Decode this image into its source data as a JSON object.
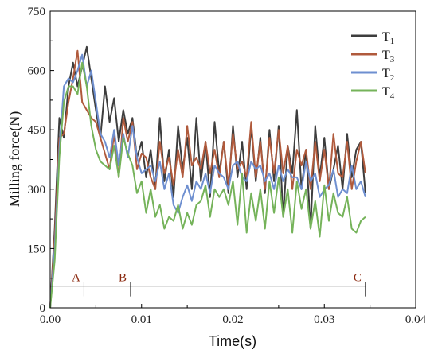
{
  "chart_data": {
    "type": "line",
    "xlabel": "Time(s)",
    "ylabel": "Milling force(N)",
    "xlim": [
      0.0,
      0.04
    ],
    "ylim": [
      0,
      750
    ],
    "x_ticks": [
      "0.00",
      "0.01",
      "0.02",
      "0.03",
      "0.04"
    ],
    "y_ticks": [
      "0",
      "150",
      "300",
      "450",
      "600",
      "750"
    ],
    "grid": false,
    "legend_position": "top-right",
    "legend": [
      {
        "base": "T",
        "sub": "1",
        "color": "#3d3d3d"
      },
      {
        "base": "T",
        "sub": "3",
        "color": "#b05a3c"
      },
      {
        "base": "T",
        "sub": "2",
        "color": "#6e8fd0"
      },
      {
        "base": "T",
        "sub": "4",
        "color": "#75b35a"
      }
    ],
    "phase_markers": {
      "level": 55,
      "labels": [
        "A",
        "B",
        "C"
      ],
      "x": [
        0.0037,
        0.0088,
        0.0345
      ],
      "start": 0.0
    },
    "x": [
      0.0,
      0.0005,
      0.001,
      0.0015,
      0.002,
      0.0025,
      0.003,
      0.0035,
      0.004,
      0.0045,
      0.005,
      0.0055,
      0.006,
      0.0065,
      0.007,
      0.0075,
      0.008,
      0.0085,
      0.009,
      0.0095,
      0.01,
      0.0105,
      0.011,
      0.0115,
      0.012,
      0.0125,
      0.013,
      0.0135,
      0.014,
      0.0145,
      0.015,
      0.0155,
      0.016,
      0.0165,
      0.017,
      0.0175,
      0.018,
      0.0185,
      0.019,
      0.0195,
      0.02,
      0.0205,
      0.021,
      0.0215,
      0.022,
      0.0225,
      0.023,
      0.0235,
      0.024,
      0.0245,
      0.025,
      0.0255,
      0.026,
      0.0265,
      0.027,
      0.0275,
      0.028,
      0.0285,
      0.029,
      0.0295,
      0.03,
      0.0305,
      0.031,
      0.0315,
      0.032,
      0.0325,
      0.033,
      0.0335,
      0.034,
      0.0345
    ],
    "series": [
      {
        "name": "T1",
        "color": "#3d3d3d",
        "values": [
          0,
          200,
          480,
          430,
          560,
          620,
          560,
          610,
          660,
          580,
          500,
          430,
          560,
          470,
          530,
          420,
          500,
          440,
          480,
          380,
          420,
          330,
          400,
          300,
          480,
          320,
          400,
          280,
          460,
          350,
          430,
          300,
          480,
          320,
          420,
          280,
          470,
          340,
          420,
          290,
          460,
          330,
          420,
          300,
          460,
          320,
          430,
          290,
          450,
          320,
          460,
          230,
          410,
          340,
          500,
          300,
          400,
          200,
          460,
          330,
          430,
          300,
          350,
          410,
          300,
          440,
          330,
          400,
          420,
          290
        ]
      },
      {
        "name": "T3",
        "color": "#b05a3c",
        "values": [
          0,
          180,
          430,
          440,
          520,
          580,
          650,
          520,
          500,
          480,
          470,
          430,
          390,
          350,
          440,
          330,
          480,
          420,
          470,
          350,
          390,
          380,
          330,
          300,
          420,
          340,
          380,
          310,
          400,
          330,
          460,
          360,
          380,
          350,
          420,
          340,
          400,
          330,
          420,
          310,
          440,
          350,
          370,
          330,
          470,
          330,
          420,
          300,
          430,
          340,
          450,
          340,
          410,
          300,
          400,
          360,
          400,
          300,
          420,
          320,
          400,
          300,
          440,
          340,
          330,
          420,
          300,
          370,
          420,
          340
        ]
      },
      {
        "name": "T2",
        "color": "#6e8fd0",
        "values": [
          0,
          150,
          400,
          560,
          580,
          570,
          600,
          640,
          560,
          600,
          520,
          440,
          420,
          380,
          450,
          360,
          440,
          380,
          460,
          380,
          340,
          350,
          360,
          320,
          370,
          300,
          340,
          260,
          240,
          280,
          310,
          270,
          320,
          300,
          340,
          290,
          360,
          340,
          330,
          300,
          360,
          370,
          330,
          320,
          370,
          350,
          360,
          320,
          340,
          300,
          360,
          320,
          350,
          330,
          330,
          300,
          370,
          320,
          340,
          280,
          300,
          310,
          350,
          280,
          300,
          290,
          360,
          300,
          320,
          280
        ]
      },
      {
        "name": "T4",
        "color": "#75b35a",
        "values": [
          0,
          120,
          380,
          520,
          560,
          560,
          540,
          620,
          560,
          460,
          400,
          370,
          360,
          350,
          410,
          330,
          430,
          390,
          360,
          290,
          320,
          240,
          300,
          230,
          260,
          200,
          230,
          220,
          260,
          200,
          240,
          210,
          260,
          270,
          310,
          230,
          300,
          280,
          300,
          260,
          320,
          210,
          340,
          190,
          290,
          220,
          300,
          200,
          320,
          240,
          330,
          230,
          300,
          190,
          320,
          250,
          300,
          200,
          270,
          180,
          310,
          220,
          290,
          240,
          230,
          280,
          200,
          190,
          220,
          230
        ]
      }
    ]
  }
}
